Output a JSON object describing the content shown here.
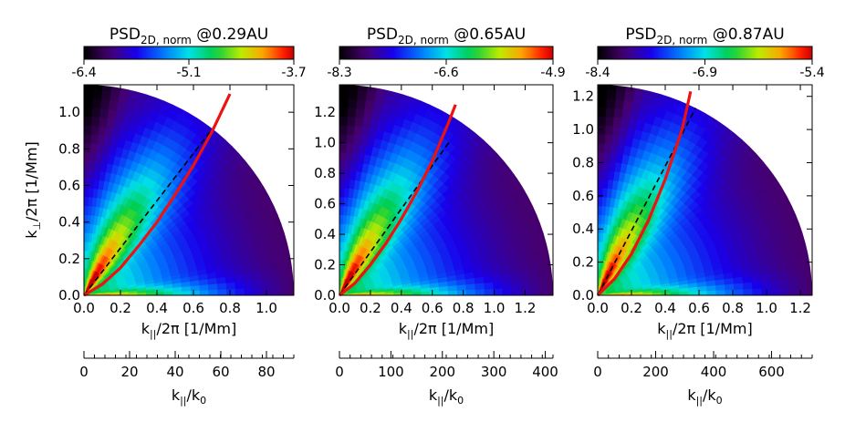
{
  "chart_data": [
    {
      "type": "heatmap",
      "colorbar": {
        "title_main": "PSD",
        "title_sub": "2D, norm",
        "title_suffix": " @0.29AU",
        "range": [
          -6.4,
          -3.7
        ],
        "ticks": [
          "-6.4",
          "-5.1",
          "-3.7"
        ]
      },
      "x_axis": {
        "label_main": "k",
        "label_sub": "||",
        "label_suffix": "/2π  [1/Mm]",
        "range": [
          0,
          1.15
        ],
        "ticks": [
          "0.0",
          "0.2",
          "0.4",
          "0.6",
          "0.8",
          "1.0"
        ]
      },
      "y_axis": {
        "label_main": "k",
        "label_sub": "⊥",
        "label_suffix": "/2π  [1/Mm]",
        "range": [
          0,
          1.15
        ],
        "ticks": [
          "0.0",
          "0.2",
          "0.4",
          "0.6",
          "0.8",
          "1.0"
        ]
      },
      "x2_axis": {
        "label_main": "k",
        "label_sub": "||",
        "label_suffix": "/k",
        "label_sub2": "0",
        "range": [
          0,
          92
        ],
        "ticks": [
          "0",
          "20",
          "40",
          "60",
          "80"
        ]
      },
      "field": {
        "radius": 1.15,
        "peak_angle_deg": 60
      },
      "red_curve": {
        "x": [
          0,
          0.1,
          0.2,
          0.3,
          0.4,
          0.5,
          0.6,
          0.7,
          0.8
        ],
        "y": [
          0,
          0.06,
          0.15,
          0.27,
          0.4,
          0.55,
          0.71,
          0.89,
          1.1
        ]
      },
      "dashed_line": {
        "x": [
          0,
          0.72
        ],
        "y": [
          0,
          0.93
        ]
      }
    },
    {
      "type": "heatmap",
      "colorbar": {
        "title_main": "PSD",
        "title_sub": "2D, norm",
        "title_suffix": " @0.65AU",
        "range": [
          -8.3,
          -4.9
        ],
        "ticks": [
          "-8.3",
          "-6.6",
          "-4.9"
        ]
      },
      "x_axis": {
        "label_main": "k",
        "label_sub": "||",
        "label_suffix": "/2π  [1/Mm]",
        "range": [
          0,
          1.38
        ],
        "ticks": [
          "0.0",
          "0.2",
          "0.4",
          "0.6",
          "0.8",
          "1.0",
          "1.2"
        ]
      },
      "y_axis": {
        "range": [
          0,
          1.38
        ],
        "ticks": [
          "0.0",
          "0.2",
          "0.4",
          "0.6",
          "0.8",
          "1.0",
          "1.2"
        ]
      },
      "x2_axis": {
        "label_main": "k",
        "label_sub": "||",
        "label_suffix": "/k",
        "label_sub2": "0",
        "range": [
          0,
          415
        ],
        "ticks": [
          "0",
          "100",
          "200",
          "300",
          "400"
        ]
      },
      "field": {
        "radius": 1.38,
        "peak_angle_deg": 62
      },
      "red_curve": {
        "x": [
          0,
          0.1,
          0.2,
          0.3,
          0.4,
          0.5,
          0.6,
          0.7,
          0.75
        ],
        "y": [
          0,
          0.08,
          0.2,
          0.34,
          0.5,
          0.68,
          0.88,
          1.12,
          1.25
        ]
      },
      "dashed_line": {
        "x": [
          0,
          0.72
        ],
        "y": [
          0,
          1.02
        ]
      }
    },
    {
      "type": "heatmap",
      "colorbar": {
        "title_main": "PSD",
        "title_sub": "2D, norm",
        "title_suffix": " @0.87AU",
        "range": [
          -8.4,
          -5.4
        ],
        "ticks": [
          "-8.4",
          "-6.9",
          "-5.4"
        ]
      },
      "x_axis": {
        "label_main": "k",
        "label_sub": "||",
        "label_suffix": "/2π  [1/Mm]",
        "range": [
          0,
          1.27
        ],
        "ticks": [
          "0.0",
          "0.2",
          "0.4",
          "0.6",
          "0.8",
          "1.0",
          "1.2"
        ]
      },
      "y_axis": {
        "range": [
          0,
          1.27
        ],
        "ticks": [
          "0.0",
          "0.2",
          "0.4",
          "0.6",
          "0.8",
          "1.0",
          "1.2"
        ]
      },
      "x2_axis": {
        "label_main": "k",
        "label_sub": "||",
        "label_suffix": "/k",
        "label_sub2": "0",
        "range": [
          0,
          740
        ],
        "ticks": [
          "0",
          "200",
          "400",
          "600"
        ]
      },
      "field": {
        "radius": 1.27,
        "peak_angle_deg": 64
      },
      "red_curve": {
        "x": [
          0,
          0.1,
          0.2,
          0.3,
          0.4,
          0.5,
          0.55
        ],
        "y": [
          0,
          0.1,
          0.25,
          0.45,
          0.7,
          1.0,
          1.23
        ]
      },
      "dashed_line": {
        "x": [
          0,
          0.58
        ],
        "y": [
          0,
          1.13
        ]
      }
    }
  ]
}
